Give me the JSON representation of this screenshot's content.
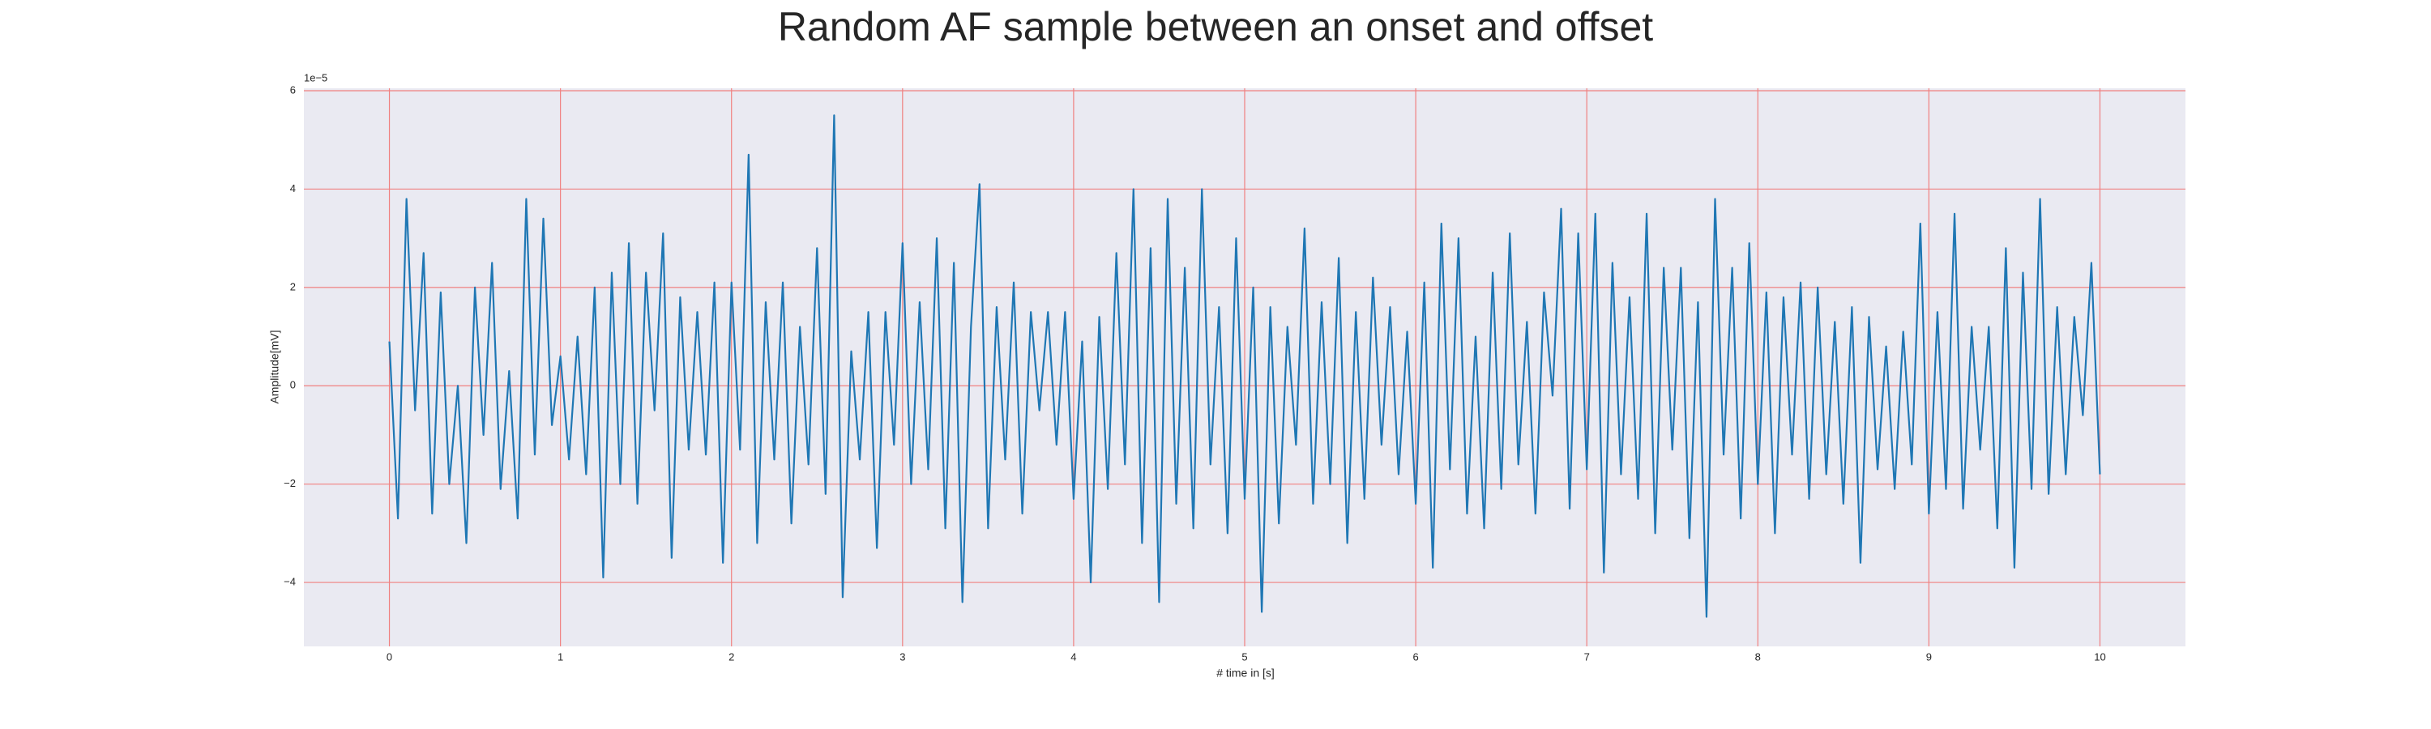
{
  "chart_data": {
    "type": "line",
    "title": "Random AF sample between an onset and offset",
    "xlabel": "# time in [s]",
    "ylabel": "Amplitude[mV]",
    "y_offset_text": "1e−5",
    "xlim": [
      -0.5,
      10.5
    ],
    "ylim": [
      -5.3,
      6.05
    ],
    "xticks": [
      0,
      1,
      2,
      3,
      4,
      5,
      6,
      7,
      8,
      9,
      10
    ],
    "yticks": [
      {
        "value": -4,
        "label": "−4"
      },
      {
        "value": -2,
        "label": "−2"
      },
      0,
      2,
      4,
      6
    ],
    "grid": true,
    "grid_color": "#f08080",
    "background": "#eaeaf2",
    "x": [
      0,
      0.05,
      0.1,
      0.15,
      0.2,
      0.25,
      0.3,
      0.35,
      0.4,
      0.45,
      0.5,
      0.55,
      0.6,
      0.65,
      0.7,
      0.75,
      0.8,
      0.85,
      0.9,
      0.95,
      1,
      1.05,
      1.1,
      1.15,
      1.2,
      1.25,
      1.3,
      1.35,
      1.4,
      1.45,
      1.5,
      1.55,
      1.6,
      1.65,
      1.7,
      1.75,
      1.8,
      1.85,
      1.9,
      1.95,
      2,
      2.05,
      2.1,
      2.15,
      2.2,
      2.25,
      2.3,
      2.35,
      2.4,
      2.45,
      2.5,
      2.55,
      2.6,
      2.65,
      2.7,
      2.75,
      2.8,
      2.85,
      2.9,
      2.95,
      3,
      3.05,
      3.1,
      3.15,
      3.2,
      3.25,
      3.3,
      3.35,
      3.4,
      3.45,
      3.5,
      3.55,
      3.6,
      3.65,
      3.7,
      3.75,
      3.8,
      3.85,
      3.9,
      3.95,
      4,
      4.05,
      4.1,
      4.15,
      4.2,
      4.25,
      4.3,
      4.35,
      4.4,
      4.45,
      4.5,
      4.55,
      4.6,
      4.65,
      4.7,
      4.75,
      4.8,
      4.85,
      4.9,
      4.95,
      5,
      5.05,
      5.1,
      5.15,
      5.2,
      5.25,
      5.3,
      5.35,
      5.4,
      5.45,
      5.5,
      5.55,
      5.6,
      5.65,
      5.7,
      5.75,
      5.8,
      5.85,
      5.9,
      5.95,
      6,
      6.05,
      6.1,
      6.15,
      6.2,
      6.25,
      6.3,
      6.35,
      6.4,
      6.45,
      6.5,
      6.55,
      6.6,
      6.65,
      6.7,
      6.75,
      6.8,
      6.85,
      6.9,
      6.95,
      7,
      7.05,
      7.1,
      7.15,
      7.2,
      7.25,
      7.3,
      7.35,
      7.4,
      7.45,
      7.5,
      7.55,
      7.6,
      7.65,
      7.7,
      7.75,
      7.8,
      7.85,
      7.9,
      7.95,
      8,
      8.05,
      8.1,
      8.15,
      8.2,
      8.25,
      8.3,
      8.35,
      8.4,
      8.45,
      8.5,
      8.55,
      8.6,
      8.65,
      8.7,
      8.75,
      8.8,
      8.85,
      8.9,
      8.95,
      9,
      9.05,
      9.1,
      9.15,
      9.2,
      9.25,
      9.3,
      9.35,
      9.4,
      9.45,
      9.5,
      9.55,
      9.6,
      9.65,
      9.7,
      9.75,
      9.8,
      9.85,
      9.9,
      9.95,
      10
    ],
    "series": [
      {
        "color": "#1f77b4",
        "values": [
          0.9,
          -2.7,
          3.8,
          -0.5,
          2.7,
          -2.6,
          1.9,
          -2.0,
          0.0,
          -3.2,
          2.0,
          -1.0,
          2.5,
          -2.1,
          0.3,
          -2.7,
          3.8,
          -1.4,
          3.4,
          -0.8,
          0.6,
          -1.5,
          1.0,
          -1.8,
          2.0,
          -3.9,
          2.3,
          -2.0,
          2.9,
          -2.4,
          2.3,
          -0.5,
          3.1,
          -3.5,
          1.8,
          -1.3,
          1.5,
          -1.4,
          2.1,
          -3.6,
          2.1,
          -1.3,
          4.7,
          -3.2,
          1.7,
          -1.5,
          2.1,
          -2.8,
          1.2,
          -1.6,
          2.8,
          -2.2,
          5.5,
          -4.3,
          0.7,
          -1.5,
          1.5,
          -3.3,
          1.5,
          -1.2,
          2.9,
          -2.0,
          1.7,
          -1.7,
          3.0,
          -2.9,
          2.5,
          -4.4,
          1.2,
          4.1,
          -2.9,
          1.6,
          -1.5,
          2.1,
          -2.6,
          1.5,
          -0.5,
          1.5,
          -1.2,
          1.5,
          -2.3,
          0.9,
          -4.0,
          1.4,
          -2.1,
          2.7,
          -1.6,
          4.0,
          -3.2,
          2.8,
          -4.4,
          3.8,
          -2.4,
          2.4,
          -2.9,
          4.0,
          -1.6,
          1.6,
          -3.0,
          3.0,
          -2.3,
          2.0,
          -4.6,
          1.6,
          -2.8,
          1.2,
          -1.2,
          3.2,
          -2.4,
          1.7,
          -2.0,
          2.6,
          -3.2,
          1.5,
          -2.3,
          2.2,
          -1.2,
          1.6,
          -1.8,
          1.1,
          -2.4,
          2.1,
          -3.7,
          3.3,
          -1.7,
          3.0,
          -2.6,
          1.0,
          -2.9,
          2.3,
          -2.1,
          3.1,
          -1.6,
          1.3,
          -2.6,
          1.9,
          -0.2,
          3.6,
          -2.5,
          3.1,
          -1.7,
          3.5,
          -3.8,
          2.5,
          -1.8,
          1.8,
          -2.3,
          3.5,
          -3.0,
          2.4,
          -1.3,
          2.4,
          -3.1,
          1.7,
          -4.7,
          3.8,
          -1.4,
          2.4,
          -2.7,
          2.9,
          -2.0,
          1.9,
          -3.0,
          1.8,
          -1.4,
          2.1,
          -2.3,
          2.0,
          -1.8,
          1.3,
          -2.4,
          1.6,
          -3.6,
          1.4,
          -1.7,
          0.8,
          -2.1,
          1.1,
          -1.6,
          3.3,
          -2.6,
          1.5,
          -2.1,
          3.5,
          -2.5,
          1.2,
          -1.3,
          1.2,
          -2.9,
          2.8,
          -3.7,
          2.3,
          -2.1,
          3.8,
          -2.2,
          1.6,
          -1.8,
          1.4,
          -0.6,
          2.5,
          -1.8
        ]
      }
    ]
  }
}
